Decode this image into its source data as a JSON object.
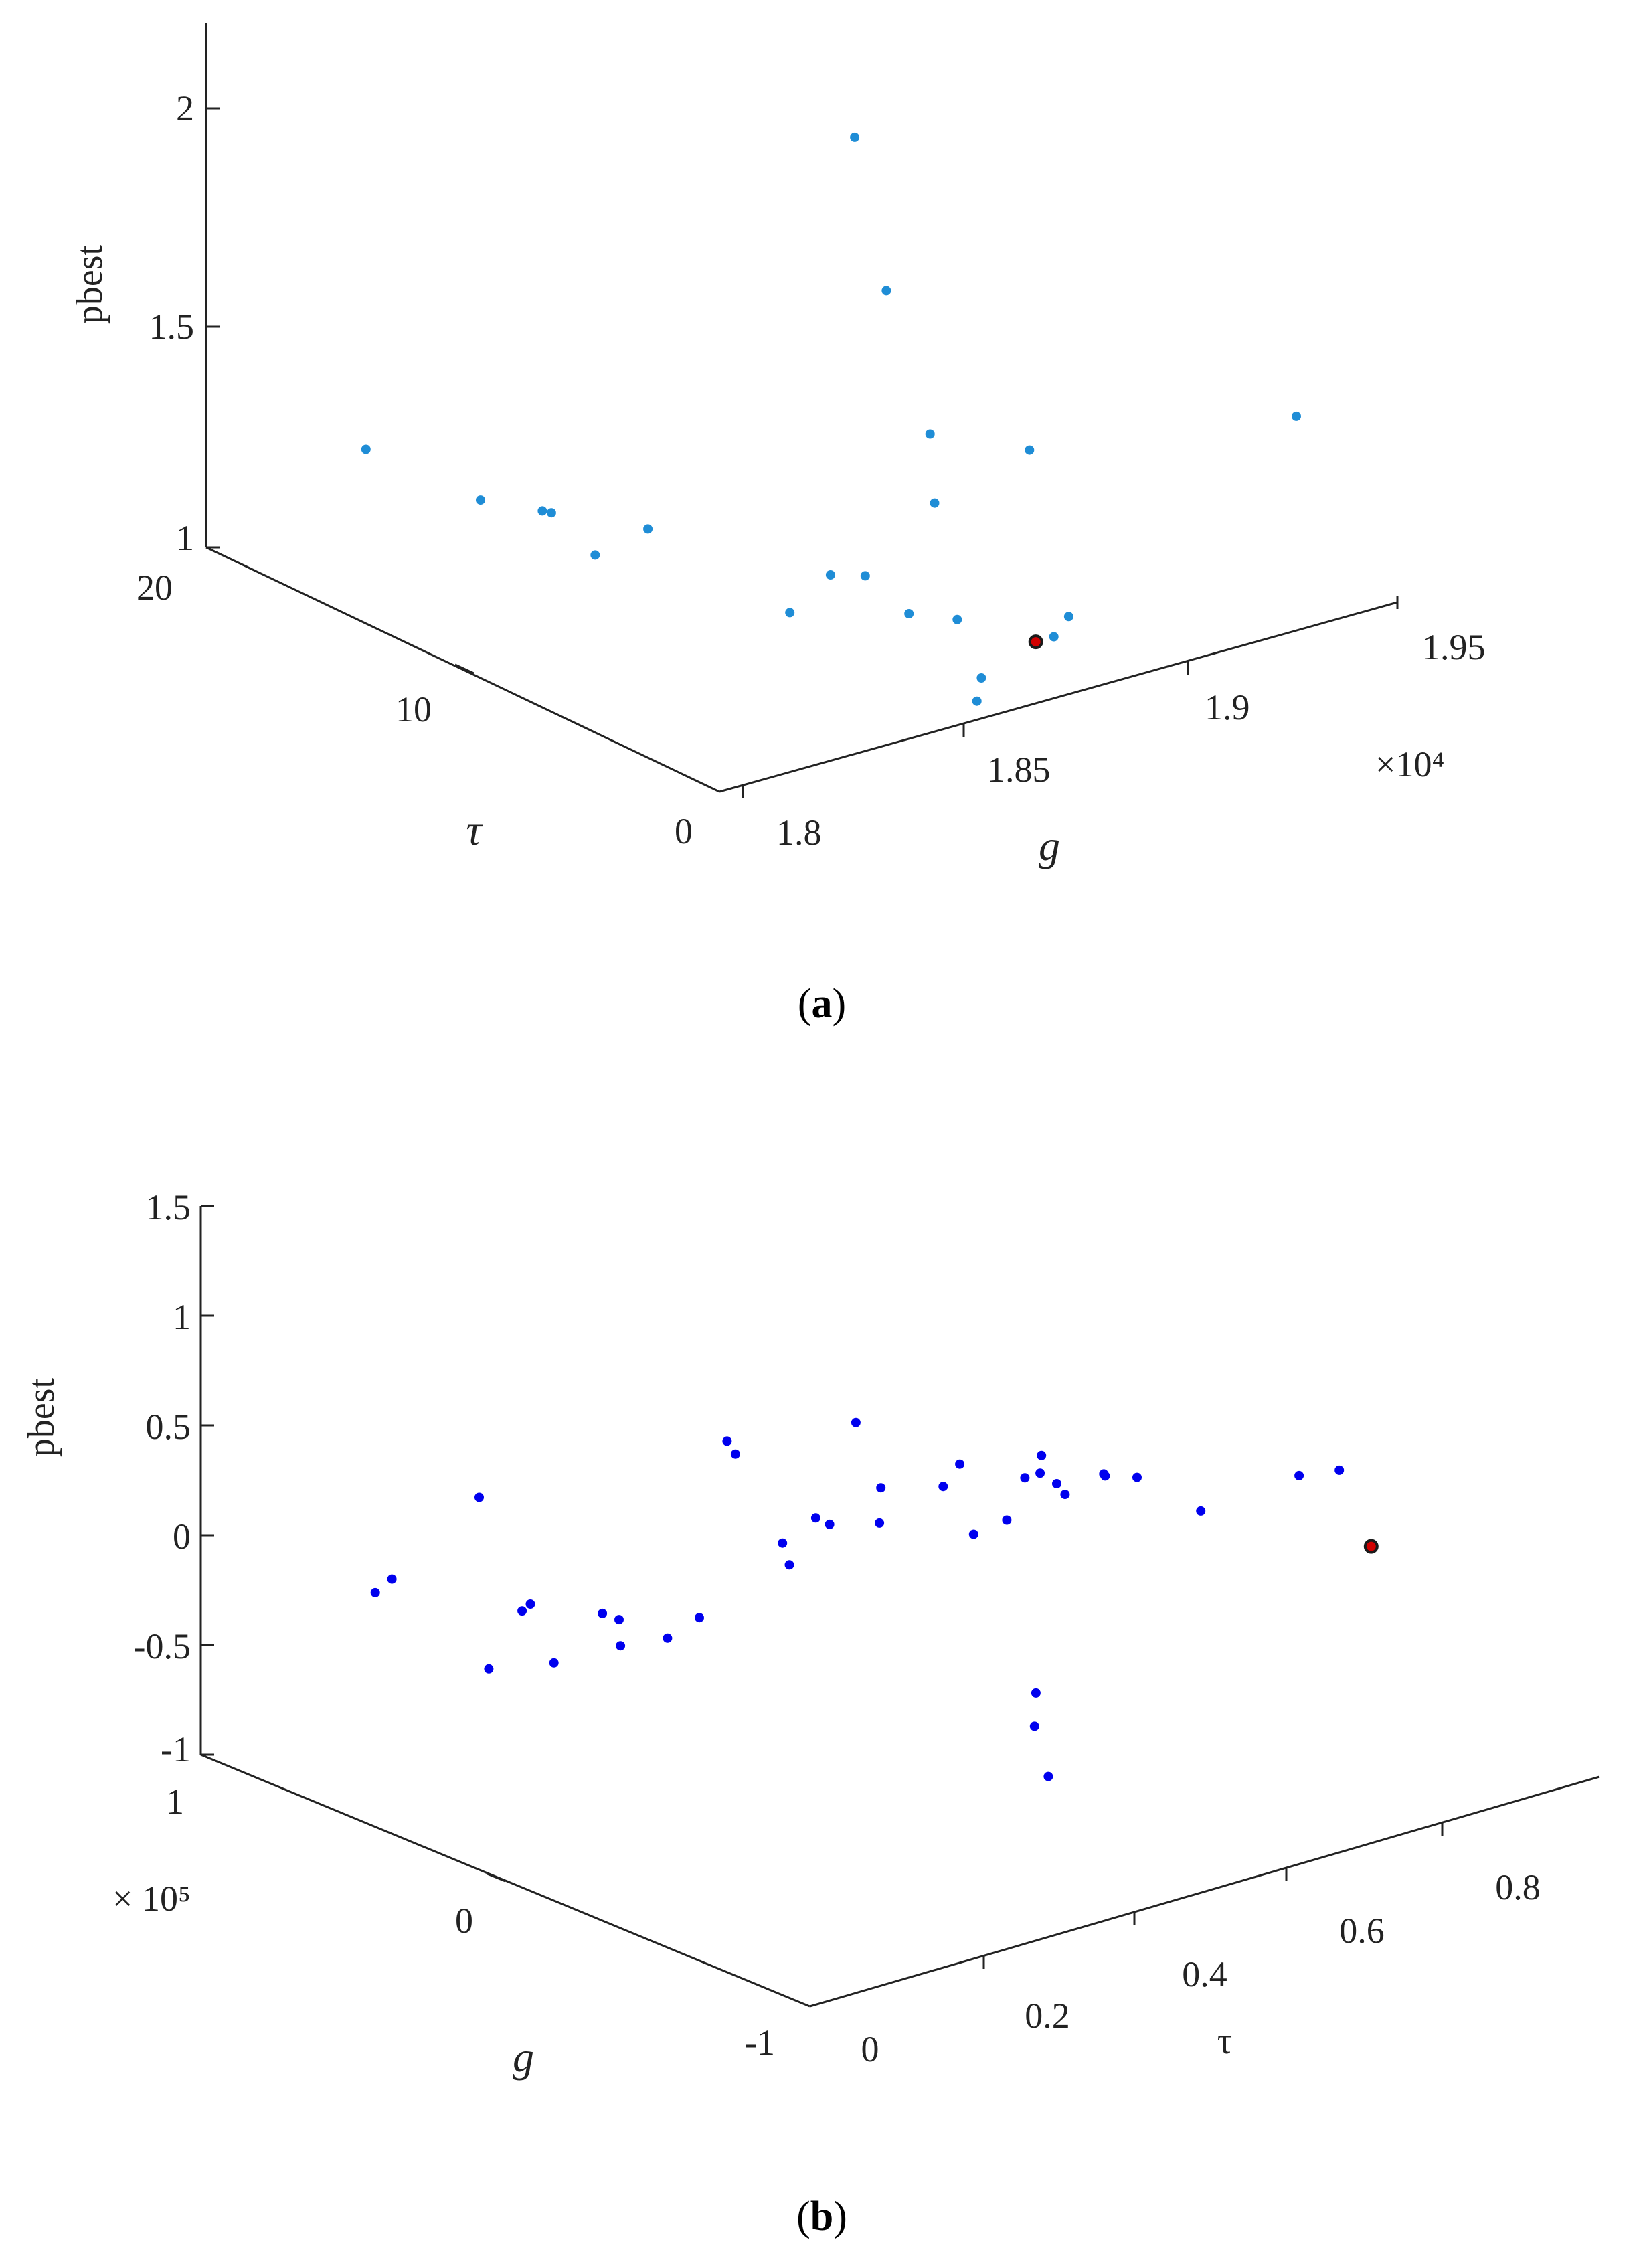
{
  "colors": {
    "series_a": "#1f8dd6",
    "series_b": "#0000ee",
    "best_point": "#d10000",
    "axis": "#222222"
  },
  "chart_data": [
    {
      "type": "scatter",
      "caption": "a",
      "zlabel": "pbest",
      "xlabel": "g",
      "ylabel": "τ",
      "x_multiplier": "×10⁴",
      "x_ticks": [
        "1.8",
        "1.85",
        "1.9",
        "1.95"
      ],
      "y_ticks": [
        "0",
        "10",
        "20"
      ],
      "z_ticks": [
        "1",
        "1.5",
        "2"
      ],
      "xlim": [
        1.8,
        1.95
      ],
      "ylim": [
        0,
        20
      ],
      "zlim": [
        1,
        2.2
      ],
      "grid": false,
      "points": [
        {
          "g": 1.864,
          "tau": 6.0,
          "pbest": 2.14
        },
        {
          "g": 1.871,
          "tau": 6.0,
          "pbest": 1.77
        },
        {
          "g": 1.875,
          "tau": 5.0,
          "pbest": 1.46
        },
        {
          "g": 1.876,
          "tau": 5.0,
          "pbest": 1.3
        },
        {
          "g": 1.897,
          "tau": 5.0,
          "pbest": 1.36
        },
        {
          "g": 1.939,
          "tau": 2.0,
          "pbest": 1.4
        },
        {
          "g": 1.824,
          "tau": 18.0,
          "pbest": 1.21
        },
        {
          "g": 1.838,
          "tau": 16.0,
          "pbest": 1.11
        },
        {
          "g": 1.846,
          "tau": 15.0,
          "pbest": 1.09
        },
        {
          "g": 1.848,
          "tau": 15.0,
          "pbest": 1.08
        },
        {
          "g": 1.852,
          "tau": 14.0,
          "pbest": 1.0
        },
        {
          "g": 1.858,
          "tau": 13.0,
          "pbest": 1.07
        },
        {
          "g": 1.861,
          "tau": 8.0,
          "pbest": 1.01
        },
        {
          "g": 1.87,
          "tau": 8.0,
          "pbest": 1.07
        },
        {
          "g": 1.872,
          "tau": 7.0,
          "pbest": 1.09
        },
        {
          "g": 1.876,
          "tau": 6.0,
          "pbest": 1.02
        },
        {
          "g": 1.881,
          "tau": 5.0,
          "pbest": 1.02
        },
        {
          "g": 1.875,
          "tau": 3.0,
          "pbest": 0.96
        },
        {
          "g": 1.874,
          "tau": 3.0,
          "pbest": 0.91
        },
        {
          "g": 1.9,
          "tau": 4.0,
          "pbest": 1.0
        },
        {
          "g": 1.874,
          "tau": 0.0,
          "pbest": 1.14
        }
      ],
      "best": {
        "g": 1.87,
        "tau": 0.0,
        "pbest": 1.14
      }
    },
    {
      "type": "scatter",
      "caption": "b",
      "zlabel": "pbest",
      "xlabel": "τ",
      "ylabel": "g",
      "y_multiplier": "× 10⁵",
      "x_ticks": [
        "0",
        "0.2",
        "0.4",
        "0.6",
        "0.8"
      ],
      "y_ticks": [
        "-1",
        "0",
        "1"
      ],
      "z_ticks": [
        "-1",
        "-0.5",
        "0",
        "0.5",
        "1",
        "1.5"
      ],
      "xlim": [
        0,
        0.9
      ],
      "ylim": [
        -1,
        1
      ],
      "zlim": [
        -1,
        1.5
      ],
      "grid": false,
      "points": [
        {
          "tau": 0.1,
          "g": 0.7,
          "pbest": -0.2
        },
        {
          "tau": 0.12,
          "g": 0.7,
          "pbest": -0.16
        },
        {
          "tau": 0.28,
          "g": 0.85,
          "pbest": -0.05
        },
        {
          "tau": 0.2,
          "g": 0.6,
          "pbest": -0.6
        },
        {
          "tau": 0.26,
          "g": 0.55,
          "pbest": -0.61
        },
        {
          "tau": 0.24,
          "g": 0.6,
          "pbest": -0.38
        },
        {
          "tau": 0.25,
          "g": 0.6,
          "pbest": -0.36
        },
        {
          "tau": 0.3,
          "g": 0.5,
          "pbest": -0.4
        },
        {
          "tau": 0.32,
          "g": 0.5,
          "pbest": -0.45
        },
        {
          "tau": 0.34,
          "g": 0.55,
          "pbest": -0.62
        },
        {
          "tau": 0.36,
          "g": 0.45,
          "pbest": -0.55
        },
        {
          "tau": 0.38,
          "g": 0.4,
          "pbest": -0.45
        },
        {
          "tau": 0.45,
          "g": 0.5,
          "pbest": 0.22
        },
        {
          "tau": 0.46,
          "g": 0.5,
          "pbest": 0.15
        },
        {
          "tau": 0.47,
          "g": 0.35,
          "pbest": -0.28
        },
        {
          "tau": 0.48,
          "g": 0.4,
          "pbest": -0.22
        },
        {
          "tau": 0.5,
          "g": 0.3,
          "pbest": -0.1
        },
        {
          "tau": 0.52,
          "g": 0.4,
          "pbest": -0.15
        },
        {
          "tau": 0.55,
          "g": 0.35,
          "pbest": 0.28
        },
        {
          "tau": 0.56,
          "g": 0.3,
          "pbest": -0.16
        },
        {
          "tau": 0.58,
          "g": 0.35,
          "pbest": -0.05
        },
        {
          "tau": 0.6,
          "g": 0.2,
          "pbest": 0.02
        },
        {
          "tau": 0.6,
          "g": 0.1,
          "pbest": -0.14
        },
        {
          "tau": 0.62,
          "g": 0.2,
          "pbest": 0.1
        },
        {
          "tau": 0.64,
          "g": 0.1,
          "pbest": -0.12
        },
        {
          "tau": 0.58,
          "g": -0.2,
          "pbest": -1.05
        },
        {
          "tau": 0.6,
          "g": -0.1,
          "pbest": -0.9
        },
        {
          "tau": 0.62,
          "g": -0.05,
          "pbest": -0.8
        },
        {
          "tau": 0.68,
          "g": 0.15,
          "pbest": 0.0
        },
        {
          "tau": 0.68,
          "g": 0.1,
          "pbest": 0.05
        },
        {
          "tau": 0.7,
          "g": 0.15,
          "pbest": 0.08
        },
        {
          "tau": 0.7,
          "g": 0.1,
          "pbest": -0.02
        },
        {
          "tau": 0.71,
          "g": 0.1,
          "pbest": -0.08
        },
        {
          "tau": 0.72,
          "g": 0.0,
          "pbest": 0.06
        },
        {
          "tau": 0.74,
          "g": 0.05,
          "pbest": 0.0
        },
        {
          "tau": 0.76,
          "g": 0.0,
          "pbest": 0.0
        },
        {
          "tau": 0.8,
          "g": -0.1,
          "pbest": -0.14
        },
        {
          "tau": 0.9,
          "g": -0.15,
          "pbest": -0.06
        },
        {
          "tau": 0.93,
          "g": -0.2,
          "pbest": -0.04
        }
      ],
      "best": {
        "tau": 0.95,
        "g": -0.25,
        "pbest": -0.38
      }
    }
  ],
  "captions": {
    "a": "a",
    "b": "b"
  }
}
